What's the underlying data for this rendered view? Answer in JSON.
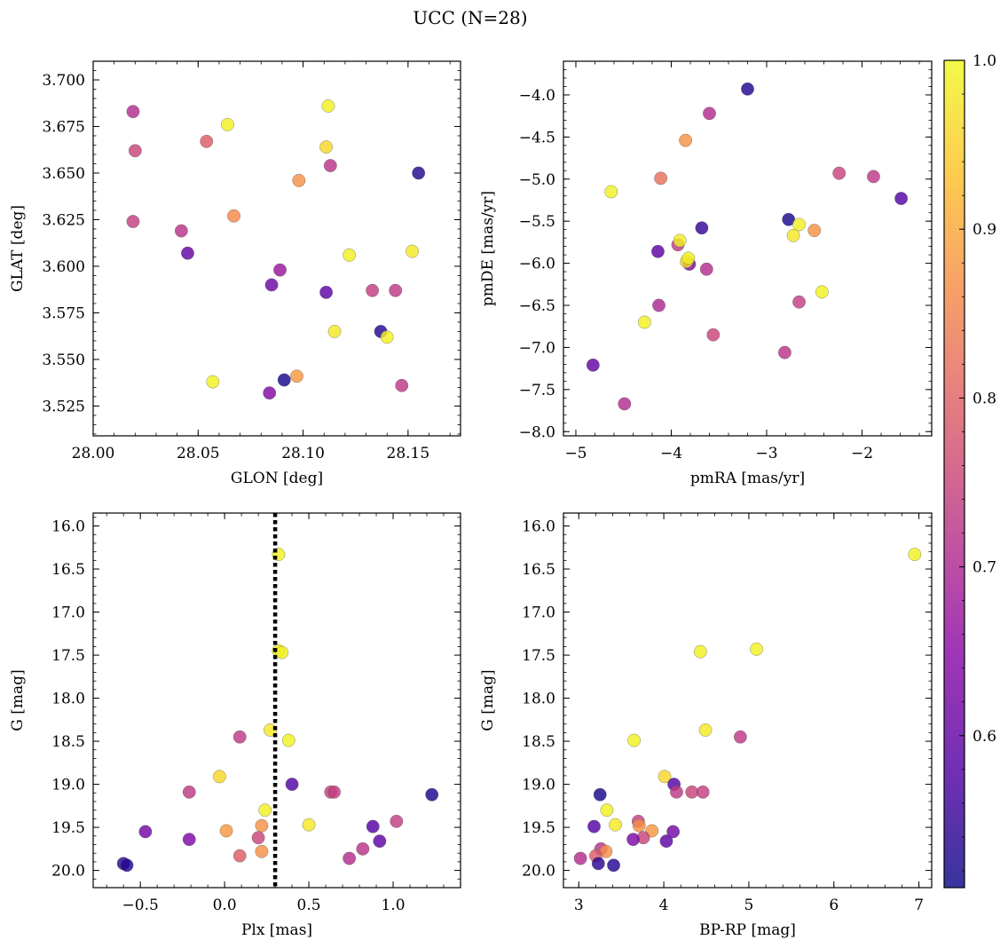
{
  "figure": {
    "title": "UCC (N=28)"
  },
  "colors": {
    "colormap": [
      "#0d0887",
      "#5302a3",
      "#8b0aa5",
      "#b83289",
      "#db5c68",
      "#f48849",
      "#febd2a",
      "#f0f921"
    ],
    "frame": "#000000",
    "reference_line": "#000000"
  },
  "colorbar": {
    "range": [
      0.51,
      1.0
    ],
    "ticks": [
      0.6,
      0.7,
      0.8,
      0.9,
      1.0
    ],
    "tick_labels": [
      "0.6",
      "0.7",
      "0.8",
      "0.9",
      "1.0"
    ]
  },
  "chart_data": [
    {
      "id": "glon-glat",
      "type": "scatter",
      "xlabel": "GLON [deg]",
      "ylabel": "GLAT [deg]",
      "xlim": [
        28.0,
        28.175
      ],
      "ylim": [
        3.509,
        3.71
      ],
      "xticks": [
        28.0,
        28.05,
        28.1,
        28.15
      ],
      "xtick_labels": [
        "28.00",
        "28.05",
        "28.10",
        "28.15"
      ],
      "yticks": [
        3.525,
        3.55,
        3.575,
        3.6,
        3.625,
        3.65,
        3.675,
        3.7
      ],
      "ytick_labels": [
        "3.525",
        "3.550",
        "3.575",
        "3.600",
        "3.625",
        "3.650",
        "3.675",
        "3.700"
      ],
      "points": [
        {
          "x": 28.019,
          "y": 3.683,
          "c": 0.71
        },
        {
          "x": 28.02,
          "y": 3.662,
          "c": 0.75
        },
        {
          "x": 28.019,
          "y": 3.624,
          "c": 0.74
        },
        {
          "x": 28.042,
          "y": 3.619,
          "c": 0.72
        },
        {
          "x": 28.045,
          "y": 3.607,
          "c": 0.6
        },
        {
          "x": 28.054,
          "y": 3.667,
          "c": 0.79
        },
        {
          "x": 28.064,
          "y": 3.676,
          "c": 0.99
        },
        {
          "x": 28.067,
          "y": 3.627,
          "c": 0.86
        },
        {
          "x": 28.057,
          "y": 3.538,
          "c": 0.99
        },
        {
          "x": 28.085,
          "y": 3.59,
          "c": 0.61
        },
        {
          "x": 28.089,
          "y": 3.598,
          "c": 0.67
        },
        {
          "x": 28.084,
          "y": 3.532,
          "c": 0.64
        },
        {
          "x": 28.091,
          "y": 3.539,
          "c": 0.52
        },
        {
          "x": 28.097,
          "y": 3.541,
          "c": 0.88
        },
        {
          "x": 28.098,
          "y": 3.646,
          "c": 0.87
        },
        {
          "x": 28.112,
          "y": 3.686,
          "c": 0.99
        },
        {
          "x": 28.111,
          "y": 3.664,
          "c": 0.96
        },
        {
          "x": 28.113,
          "y": 3.654,
          "c": 0.72
        },
        {
          "x": 28.111,
          "y": 3.586,
          "c": 0.59
        },
        {
          "x": 28.122,
          "y": 3.606,
          "c": 0.99
        },
        {
          "x": 28.115,
          "y": 3.565,
          "c": 0.98
        },
        {
          "x": 28.133,
          "y": 3.587,
          "c": 0.74
        },
        {
          "x": 28.137,
          "y": 3.565,
          "c": 0.53
        },
        {
          "x": 28.14,
          "y": 3.562,
          "c": 0.99
        },
        {
          "x": 28.144,
          "y": 3.587,
          "c": 0.73
        },
        {
          "x": 28.147,
          "y": 3.536,
          "c": 0.73
        },
        {
          "x": 28.152,
          "y": 3.608,
          "c": 0.98
        },
        {
          "x": 28.155,
          "y": 3.65,
          "c": 0.53
        }
      ]
    },
    {
      "id": "pmra-pmde",
      "type": "scatter",
      "xlabel": "pmRA [mas/yr]",
      "ylabel": "pmDE [mas/yr]",
      "xlim": [
        -5.13,
        -1.27
      ],
      "ylim": [
        -8.05,
        -3.6
      ],
      "xticks": [
        -5,
        -4,
        -3,
        -2
      ],
      "xtick_labels": [
        "−5",
        "−4",
        "−3",
        "−2"
      ],
      "yticks": [
        -8.0,
        -7.5,
        -7.0,
        -6.5,
        -6.0,
        -5.5,
        -5.0,
        -4.5,
        -4.0
      ],
      "ytick_labels": [
        "−8.0",
        "−7.5",
        "−7.0",
        "−6.5",
        "−6.0",
        "−5.5",
        "−5.0",
        "−4.5",
        "−4.0"
      ],
      "points": [
        {
          "x": -3.2,
          "y": -3.93,
          "c": 0.53
        },
        {
          "x": -3.6,
          "y": -4.22,
          "c": 0.71
        },
        {
          "x": -3.85,
          "y": -4.54,
          "c": 0.87
        },
        {
          "x": -4.11,
          "y": -4.99,
          "c": 0.82
        },
        {
          "x": -4.63,
          "y": -5.15,
          "c": 0.99
        },
        {
          "x": -2.24,
          "y": -4.93,
          "c": 0.75
        },
        {
          "x": -1.88,
          "y": -4.97,
          "c": 0.73
        },
        {
          "x": -1.59,
          "y": -5.23,
          "c": 0.58
        },
        {
          "x": -2.77,
          "y": -5.48,
          "c": 0.52
        },
        {
          "x": -3.68,
          "y": -5.58,
          "c": 0.55
        },
        {
          "x": -2.66,
          "y": -5.54,
          "c": 0.99
        },
        {
          "x": -2.72,
          "y": -5.67,
          "c": 0.98
        },
        {
          "x": -2.5,
          "y": -5.61,
          "c": 0.87
        },
        {
          "x": -3.93,
          "y": -5.78,
          "c": 0.73
        },
        {
          "x": -3.91,
          "y": -5.73,
          "c": 0.99
        },
        {
          "x": -4.14,
          "y": -5.86,
          "c": 0.59
        },
        {
          "x": -3.81,
          "y": -6.01,
          "c": 0.63
        },
        {
          "x": -3.84,
          "y": -5.98,
          "c": 0.96
        },
        {
          "x": -3.82,
          "y": -5.94,
          "c": 0.99
        },
        {
          "x": -3.63,
          "y": -6.07,
          "c": 0.71
        },
        {
          "x": -2.42,
          "y": -6.34,
          "c": 0.99
        },
        {
          "x": -2.66,
          "y": -6.46,
          "c": 0.74
        },
        {
          "x": -4.13,
          "y": -6.5,
          "c": 0.7
        },
        {
          "x": -4.28,
          "y": -6.7,
          "c": 0.99
        },
        {
          "x": -3.56,
          "y": -6.85,
          "c": 0.75
        },
        {
          "x": -2.81,
          "y": -7.06,
          "c": 0.72
        },
        {
          "x": -4.82,
          "y": -7.21,
          "c": 0.6
        },
        {
          "x": -4.49,
          "y": -7.67,
          "c": 0.71
        }
      ]
    },
    {
      "id": "plx-g",
      "type": "scatter",
      "xlabel": "Plx [mas]",
      "ylabel": "G [mag]",
      "xlim": [
        -0.78,
        1.4
      ],
      "ylim": [
        20.2,
        15.85
      ],
      "xticks": [
        -0.5,
        0.0,
        0.5,
        1.0
      ],
      "xtick_labels": [
        "−0.5",
        "0.0",
        "0.5",
        "1.0"
      ],
      "yticks": [
        16.0,
        16.5,
        17.0,
        17.5,
        18.0,
        18.5,
        19.0,
        19.5,
        20.0
      ],
      "ytick_labels": [
        "16.0",
        "16.5",
        "17.0",
        "17.5",
        "18.0",
        "18.5",
        "19.0",
        "19.5",
        "20.0"
      ],
      "reference_x": 0.3,
      "points": [
        {
          "x": 0.32,
          "y": 16.33,
          "c": 0.99
        },
        {
          "x": 0.32,
          "y": 17.45,
          "c": 0.99
        },
        {
          "x": 0.34,
          "y": 17.47,
          "c": 0.99
        },
        {
          "x": 0.27,
          "y": 18.37,
          "c": 0.98
        },
        {
          "x": 0.09,
          "y": 18.45,
          "c": 0.73
        },
        {
          "x": 0.38,
          "y": 18.49,
          "c": 0.99
        },
        {
          "x": -0.03,
          "y": 18.91,
          "c": 0.96
        },
        {
          "x": 0.4,
          "y": 19.0,
          "c": 0.58
        },
        {
          "x": -0.21,
          "y": 19.09,
          "c": 0.73
        },
        {
          "x": 0.63,
          "y": 19.09,
          "c": 0.75
        },
        {
          "x": 0.65,
          "y": 19.09,
          "c": 0.74
        },
        {
          "x": 1.23,
          "y": 19.12,
          "c": 0.52
        },
        {
          "x": 0.24,
          "y": 19.3,
          "c": 0.99
        },
        {
          "x": 1.02,
          "y": 19.43,
          "c": 0.74
        },
        {
          "x": 0.22,
          "y": 19.48,
          "c": 0.87
        },
        {
          "x": 0.5,
          "y": 19.47,
          "c": 0.98
        },
        {
          "x": 0.88,
          "y": 19.49,
          "c": 0.58
        },
        {
          "x": 0.01,
          "y": 19.54,
          "c": 0.88
        },
        {
          "x": -0.47,
          "y": 19.55,
          "c": 0.62
        },
        {
          "x": 0.2,
          "y": 19.62,
          "c": 0.75
        },
        {
          "x": -0.21,
          "y": 19.64,
          "c": 0.63
        },
        {
          "x": 0.92,
          "y": 19.66,
          "c": 0.59
        },
        {
          "x": 0.82,
          "y": 19.75,
          "c": 0.72
        },
        {
          "x": 0.22,
          "y": 19.78,
          "c": 0.87
        },
        {
          "x": 0.09,
          "y": 19.83,
          "c": 0.79
        },
        {
          "x": 0.74,
          "y": 19.86,
          "c": 0.71
        },
        {
          "x": -0.6,
          "y": 19.92,
          "c": 0.54
        },
        {
          "x": -0.58,
          "y": 19.94,
          "c": 0.53
        }
      ]
    },
    {
      "id": "bprp-g",
      "type": "scatter",
      "xlabel": "BP-RP [mag]",
      "ylabel": "G [mag]",
      "xlim": [
        2.82,
        7.15
      ],
      "ylim": [
        20.2,
        15.85
      ],
      "xticks": [
        3,
        4,
        5,
        6,
        7
      ],
      "xtick_labels": [
        "3",
        "4",
        "5",
        "6",
        "7"
      ],
      "yticks": [
        16.0,
        16.5,
        17.0,
        17.5,
        18.0,
        18.5,
        19.0,
        19.5,
        20.0
      ],
      "ytick_labels": [
        "16.0",
        "16.5",
        "17.0",
        "17.5",
        "18.0",
        "18.5",
        "19.0",
        "19.5",
        "20.0"
      ],
      "points": [
        {
          "x": 6.95,
          "y": 16.33,
          "c": 0.99
        },
        {
          "x": 5.09,
          "y": 17.43,
          "c": 0.99
        },
        {
          "x": 4.43,
          "y": 17.46,
          "c": 0.99
        },
        {
          "x": 4.49,
          "y": 18.37,
          "c": 0.98
        },
        {
          "x": 4.9,
          "y": 18.45,
          "c": 0.73
        },
        {
          "x": 3.65,
          "y": 18.49,
          "c": 0.99
        },
        {
          "x": 4.01,
          "y": 18.91,
          "c": 0.96
        },
        {
          "x": 4.12,
          "y": 19.0,
          "c": 0.58
        },
        {
          "x": 4.15,
          "y": 19.09,
          "c": 0.73
        },
        {
          "x": 4.33,
          "y": 19.09,
          "c": 0.75
        },
        {
          "x": 4.46,
          "y": 19.09,
          "c": 0.74
        },
        {
          "x": 3.25,
          "y": 19.12,
          "c": 0.52
        },
        {
          "x": 3.33,
          "y": 19.3,
          "c": 0.99
        },
        {
          "x": 3.7,
          "y": 19.43,
          "c": 0.74
        },
        {
          "x": 3.71,
          "y": 19.48,
          "c": 0.87
        },
        {
          "x": 3.43,
          "y": 19.47,
          "c": 0.98
        },
        {
          "x": 3.18,
          "y": 19.49,
          "c": 0.58
        },
        {
          "x": 3.86,
          "y": 19.54,
          "c": 0.88
        },
        {
          "x": 4.11,
          "y": 19.55,
          "c": 0.62
        },
        {
          "x": 3.76,
          "y": 19.62,
          "c": 0.75
        },
        {
          "x": 3.64,
          "y": 19.64,
          "c": 0.63
        },
        {
          "x": 4.03,
          "y": 19.66,
          "c": 0.59
        },
        {
          "x": 3.26,
          "y": 19.75,
          "c": 0.72
        },
        {
          "x": 3.32,
          "y": 19.78,
          "c": 0.87
        },
        {
          "x": 3.2,
          "y": 19.83,
          "c": 0.79
        },
        {
          "x": 3.02,
          "y": 19.86,
          "c": 0.71
        },
        {
          "x": 3.23,
          "y": 19.92,
          "c": 0.54
        },
        {
          "x": 3.41,
          "y": 19.94,
          "c": 0.53
        }
      ]
    }
  ]
}
